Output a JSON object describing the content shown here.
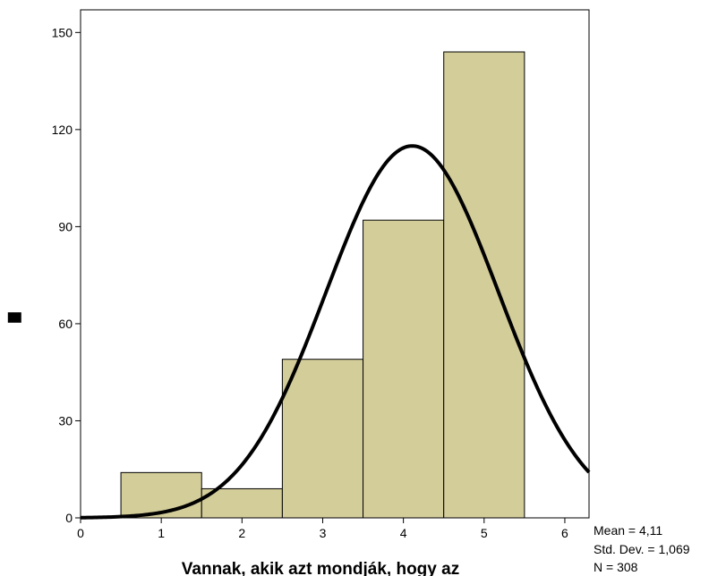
{
  "chart_data": {
    "type": "bar",
    "subtype": "histogram",
    "xlabel": "Vannak, akik azt mondják, hogy az",
    "ylabel": "▇",
    "xlim": [
      0,
      6.3
    ],
    "ylim": [
      0,
      157
    ],
    "x_ticks": [
      0,
      1,
      2,
      3,
      4,
      5,
      6
    ],
    "y_ticks": [
      0,
      30,
      60,
      90,
      120,
      150
    ],
    "bins": [
      {
        "x0": 0.5,
        "x1": 1.5,
        "value": 14
      },
      {
        "x0": 1.5,
        "x1": 2.5,
        "value": 9
      },
      {
        "x0": 2.5,
        "x1": 3.5,
        "value": 49
      },
      {
        "x0": 3.5,
        "x1": 4.5,
        "value": 92
      },
      {
        "x0": 4.5,
        "x1": 5.5,
        "value": 144
      }
    ],
    "bar_color": "#d3cd9a",
    "bar_edge_color": "#000000",
    "normal_curve": {
      "mean": 4.11,
      "std": 1.069,
      "n": 308,
      "bin_width": 1,
      "color": "#000000"
    },
    "grid": false,
    "stats_box": {
      "mean": "Mean = 4,11",
      "std": "Std. Dev. = 1,069",
      "n": "N = 308"
    }
  }
}
